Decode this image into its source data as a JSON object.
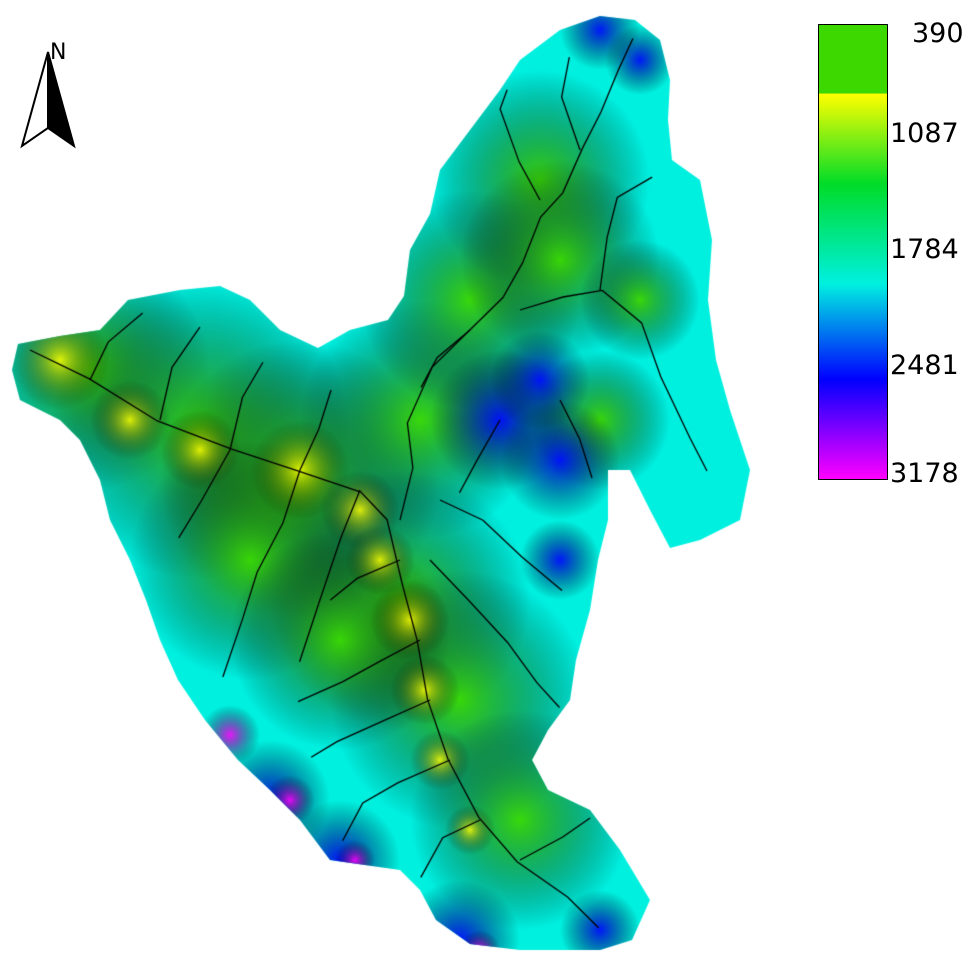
{
  "north_arrow": {
    "label": "N"
  },
  "legend": {
    "labels": [
      "390",
      "1087",
      "1784",
      "2481",
      "3178"
    ],
    "colors": {
      "band_top": "#3cd800",
      "v1087": "#ffff00",
      "v1784": "#00f0e0",
      "v2481": "#0000ff",
      "v3178": "#ff00ff"
    }
  },
  "map": {
    "elevation_colors": {
      "low": "#ffff00",
      "mid_low": "#3cd800",
      "mid": "#00f0e0",
      "high": "#0000ff",
      "peak": "#ff00ff"
    },
    "stream_color": "#000000"
  }
}
